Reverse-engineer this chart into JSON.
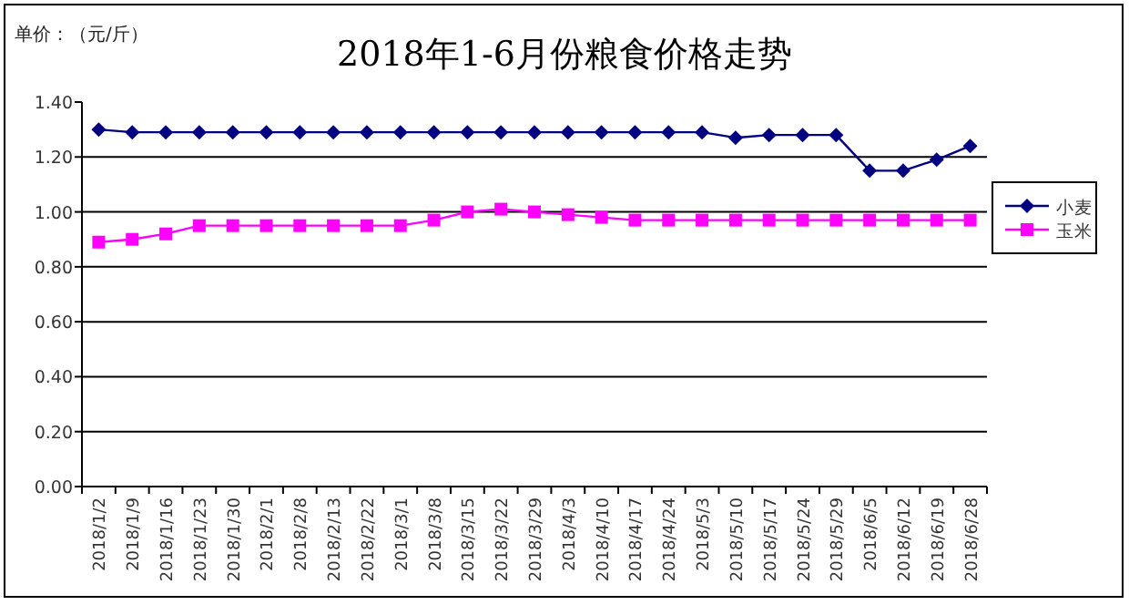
{
  "chart_data": {
    "type": "line",
    "title": "2018年1-6月份粮食价格走势",
    "ylabel": "单价：（元/斤）",
    "categories": [
      "2018/1/2",
      "2018/1/9",
      "2018/1/16",
      "2018/1/23",
      "2018/1/30",
      "2018/2/1",
      "2018/2/8",
      "2018/2/13",
      "2018/2/22",
      "2018/3/1",
      "2018/3/8",
      "2018/3/15",
      "2018/3/22",
      "2018/3/29",
      "2018/4/3",
      "2018/4/10",
      "2018/4/17",
      "2018/4/24",
      "2018/5/3",
      "2018/5/10",
      "2018/5/17",
      "2018/5/24",
      "2018/5/29",
      "2018/6/5",
      "2018/6/12",
      "2018/6/19",
      "2018/6/28"
    ],
    "series": [
      {
        "name": "小麦",
        "color": "#000080",
        "marker": "diamond",
        "values": [
          1.3,
          1.29,
          1.29,
          1.29,
          1.29,
          1.29,
          1.29,
          1.29,
          1.29,
          1.29,
          1.29,
          1.29,
          1.29,
          1.29,
          1.29,
          1.29,
          1.29,
          1.29,
          1.29,
          1.27,
          1.28,
          1.28,
          1.28,
          1.15,
          1.15,
          1.19,
          1.24
        ]
      },
      {
        "name": "玉米",
        "color": "#ff00ff",
        "marker": "square",
        "values": [
          0.89,
          0.9,
          0.92,
          0.95,
          0.95,
          0.95,
          0.95,
          0.95,
          0.95,
          0.95,
          0.97,
          1.0,
          1.01,
          1.0,
          0.99,
          0.98,
          0.97,
          0.97,
          0.97,
          0.97,
          0.97,
          0.97,
          0.97,
          0.97,
          0.97,
          0.97,
          0.97
        ]
      }
    ],
    "ylim": [
      0,
      1.4
    ],
    "yticks": [
      {
        "value": 0,
        "label": "0.00"
      },
      {
        "value": 0.2,
        "label": "0.20"
      },
      {
        "value": 0.4,
        "label": "0.40"
      },
      {
        "value": 0.6,
        "label": "0.60"
      },
      {
        "value": 0.8,
        "label": "0.80"
      },
      {
        "value": 1.0,
        "label": "1.00"
      },
      {
        "value": 1.2,
        "label": "1.20"
      },
      {
        "value": 1.4,
        "label": "1.40"
      }
    ],
    "grid": "y",
    "legend": "right"
  }
}
